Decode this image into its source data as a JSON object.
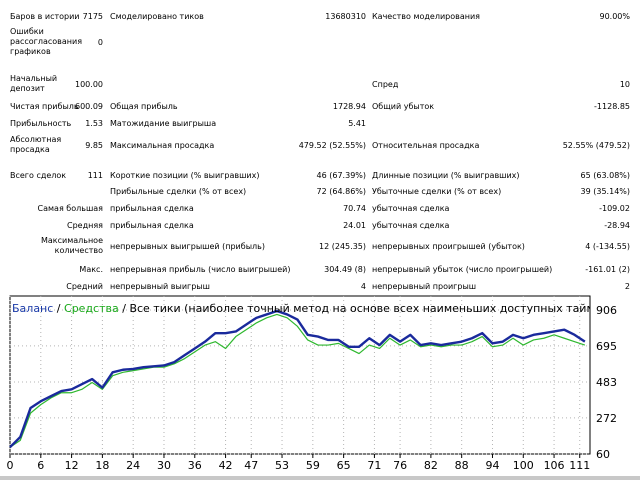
{
  "stats": {
    "bars_label": "Баров в истории",
    "bars_value": "7175",
    "ticks_label": "Смоделировано тиков",
    "ticks_value": "13680310",
    "quality_label": "Качество моделирования",
    "quality_value": "90.00%",
    "errors_label": "Ошибки рассогласования графиков",
    "errors_value": "0",
    "deposit_label": "Начальный депозит",
    "deposit_value": "100.00",
    "spread_label": "Спред",
    "spread_value": "10",
    "net_profit_label": "Чистая прибыль",
    "net_profit_value": "600.09",
    "gross_profit_label": "Общая прибыль",
    "gross_profit_value": "1728.94",
    "gross_loss_label": "Общий убыток",
    "gross_loss_value": "-1128.85",
    "profit_factor_label": "Прибыльность",
    "profit_factor_value": "1.53",
    "expected_payoff_label": "Матожидание выигрыша",
    "expected_payoff_value": "5.41",
    "abs_drawdown_label": "Абсолютная просадка",
    "abs_drawdown_value": "9.85",
    "max_drawdown_label": "Максимальная просадка",
    "max_drawdown_value": "479.52 (52.55%)",
    "rel_drawdown_label": "Относительная просадка",
    "rel_drawdown_value": "52.55% (479.52)",
    "total_trades_label": "Всего сделок",
    "total_trades_value": "111",
    "short_label": "Короткие позиции (% выигравших)",
    "short_value": "46 (67.39%)",
    "long_label": "Длинные позиции (% выигравших)",
    "long_value": "65 (63.08%)",
    "profit_trades_label": "Прибыльные сделки (% от всех)",
    "profit_trades_value": "72 (64.86%)",
    "loss_trades_label": "Убыточные сделки (% от всех)",
    "loss_trades_value": "39 (35.14%)",
    "largest_label": "Самая большая",
    "largest_profit_label": "прибыльная сделка",
    "largest_profit_value": "70.74",
    "largest_loss_label": "убыточная сделка",
    "largest_loss_value": "-109.02",
    "average_label": "Средняя",
    "average_profit_label": "прибыльная сделка",
    "average_profit_value": "24.01",
    "average_loss_label": "убыточная сделка",
    "average_loss_value": "-28.94",
    "max_count_label": "Максимальное количество",
    "max_cons_wins_label": "непрерывных выигрышей (прибыль)",
    "max_cons_wins_value": "12 (245.35)",
    "max_cons_losses_label": "непрерывных проигрышей (убыток)",
    "max_cons_losses_value": "4 (-134.55)",
    "max_label": "Макс.",
    "max_cons_profit_label": "непрерывная прибыль (число выигрышей)",
    "max_cons_profit_value": "304.49 (8)",
    "max_cons_loss_label": "непрерывный убыток (число проигрышей)",
    "max_cons_loss_value": "-161.01 (2)",
    "avg_label": "Средний",
    "avg_cons_wins_label": "непрерывный выигрыш",
    "avg_cons_wins_value": "4",
    "avg_cons_losses_label": "непрерывный проигрыш",
    "avg_cons_losses_value": "2"
  },
  "legend": {
    "balance": "Баланс",
    "slash1": " / ",
    "equity": "Средства",
    "slash2": " / ",
    "text": "Все тики (наиболее точный метод на основе всех наименьших доступных таймфреймов для генерации каждого тика)"
  },
  "colors": {
    "balance": "#1a2a9c",
    "equity": "#2fb82f",
    "grid": "#b4b4b4"
  },
  "chart_data": {
    "type": "line",
    "x": [
      0,
      2,
      4,
      6,
      8,
      10,
      12,
      14,
      16,
      18,
      20,
      22,
      24,
      26,
      28,
      30,
      32,
      34,
      36,
      38,
      40,
      42,
      44,
      46,
      48,
      50,
      52,
      54,
      56,
      58,
      60,
      62,
      64,
      66,
      68,
      70,
      72,
      74,
      76,
      78,
      80,
      82,
      84,
      86,
      88,
      90,
      92,
      94,
      96,
      98,
      100,
      102,
      104,
      106,
      108,
      110,
      112
    ],
    "series": [
      {
        "name": "Баланс",
        "values": [
          100,
          160,
          330,
          370,
          400,
          430,
          440,
          470,
          500,
          450,
          540,
          555,
          560,
          570,
          575,
          580,
          600,
          640,
          680,
          720,
          770,
          770,
          780,
          820,
          860,
          880,
          900,
          880,
          850,
          760,
          750,
          730,
          730,
          690,
          690,
          740,
          700,
          760,
          720,
          760,
          700,
          710,
          700,
          710,
          720,
          740,
          770,
          710,
          720,
          760,
          740,
          760,
          770,
          780,
          790,
          760,
          720
        ]
      },
      {
        "name": "Средства",
        "values": [
          100,
          140,
          300,
          350,
          390,
          420,
          420,
          440,
          480,
          440,
          520,
          540,
          550,
          560,
          570,
          570,
          590,
          620,
          660,
          700,
          720,
          680,
          750,
          790,
          830,
          860,
          880,
          860,
          810,
          730,
          700,
          700,
          710,
          680,
          650,
          700,
          680,
          740,
          700,
          730,
          690,
          700,
          690,
          700,
          700,
          720,
          750,
          690,
          700,
          740,
          700,
          730,
          740,
          760,
          740,
          720,
          700
        ]
      }
    ],
    "xlim": [
      0,
      113
    ],
    "ylim": [
      60,
      906
    ],
    "x_ticks": [
      "0",
      "6",
      "12",
      "18",
      "24",
      "30",
      "36",
      "42",
      "47",
      "53",
      "59",
      "65",
      "71",
      "76",
      "82",
      "88",
      "94",
      "100",
      "106",
      "111"
    ],
    "y_ticks": [
      "906",
      "695",
      "483",
      "272",
      "60"
    ],
    "grid": true
  }
}
